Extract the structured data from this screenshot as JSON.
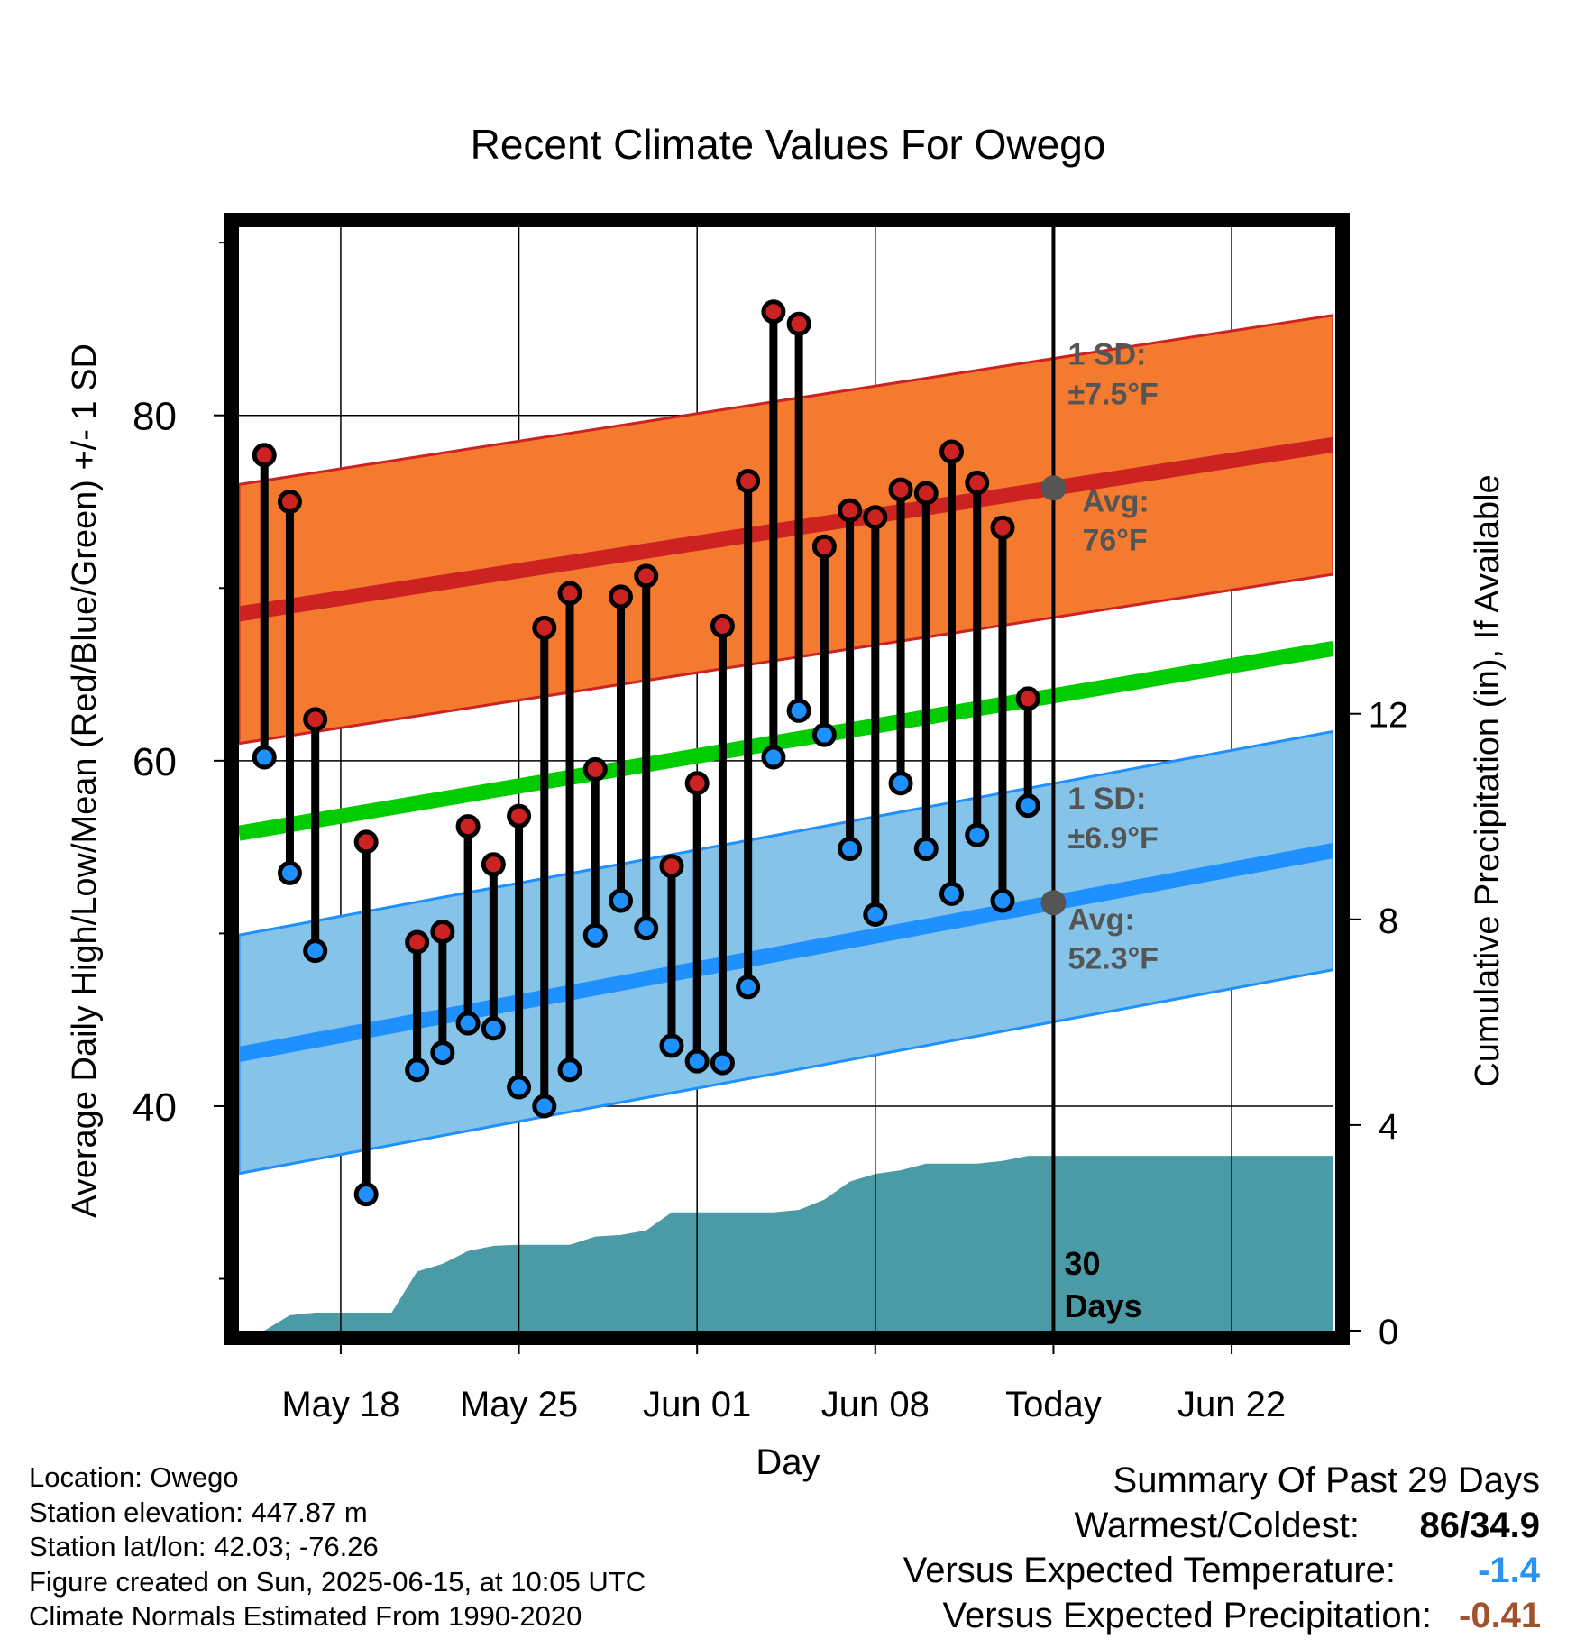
{
  "chart_data": {
    "type": "line",
    "title": "Recent Climate Values For Owego",
    "xlabel": "Day",
    "ylabel": "Average Daily High/Low/Mean (Red/Blue/Green) +/- 1 SD",
    "y2label": "Cumulative Precipitation (in), If Available",
    "xlim": [
      "2025-05-14",
      "2025-06-26"
    ],
    "ylim": [
      27,
      91
    ],
    "y2lim": [
      0,
      21.5
    ],
    "x_ticks": [
      {
        "date": "2025-05-18",
        "label": "May 18"
      },
      {
        "date": "2025-05-25",
        "label": "May 25"
      },
      {
        "date": "2025-06-01",
        "label": "Jun 01"
      },
      {
        "date": "2025-06-08",
        "label": "Jun 08"
      },
      {
        "date": "2025-06-15",
        "label": "Today"
      },
      {
        "date": "2025-06-22",
        "label": "Jun 22"
      }
    ],
    "y_ticks": [
      40,
      60,
      80
    ],
    "y2_ticks": [
      0,
      4,
      8,
      12
    ],
    "grid": true,
    "today": "2025-06-15",
    "today_label": "30\nDays",
    "dates": [
      "2025-05-15",
      "2025-05-16",
      "2025-05-17",
      "2025-05-18",
      "2025-05-19",
      "2025-05-20",
      "2025-05-21",
      "2025-05-22",
      "2025-05-23",
      "2025-05-24",
      "2025-05-25",
      "2025-05-26",
      "2025-05-27",
      "2025-05-28",
      "2025-05-29",
      "2025-05-30",
      "2025-05-31",
      "2025-06-01",
      "2025-06-02",
      "2025-06-03",
      "2025-06-04",
      "2025-06-05",
      "2025-06-06",
      "2025-06-07",
      "2025-06-08",
      "2025-06-09",
      "2025-06-10",
      "2025-06-11",
      "2025-06-12",
      "2025-06-13",
      "2025-06-14"
    ],
    "series": [
      {
        "name": "High",
        "color": "#cc2222",
        "values": [
          77.7,
          75.0,
          62.4,
          null,
          55.3,
          null,
          49.5,
          50.1,
          56.2,
          54.0,
          56.8,
          67.7,
          69.7,
          59.5,
          69.5,
          70.7,
          53.9,
          58.7,
          67.8,
          76.2,
          86.0,
          85.3,
          72.4,
          74.5,
          74.1,
          75.7,
          75.5,
          77.9,
          76.1,
          73.5,
          63.6
        ]
      },
      {
        "name": "Low",
        "color": "#1e90ff",
        "values": [
          60.2,
          53.5,
          49.0,
          null,
          34.9,
          null,
          42.1,
          43.1,
          44.8,
          44.5,
          41.1,
          40.0,
          42.1,
          49.9,
          51.9,
          50.3,
          43.5,
          42.6,
          42.5,
          46.9,
          60.2,
          62.9,
          61.5,
          54.9,
          51.1,
          58.7,
          54.9,
          52.3,
          55.7,
          51.9,
          57.4
        ]
      }
    ],
    "normal_high": {
      "start": 68.5,
      "end": 78.3,
      "sd": 7.5,
      "avg_today": 76,
      "color": "#cc2222",
      "band_color": "#f47a30"
    },
    "normal_low": {
      "start": 43.0,
      "end": 54.8,
      "sd": 6.9,
      "avg_today": 52.3,
      "color": "#1e90ff",
      "band_color": "#85c3e8"
    },
    "normal_mean": {
      "start": 55.8,
      "end": 66.5,
      "color": "#00cc00"
    },
    "precip_color": "#4a9ba5",
    "precip_cumulative": [
      {
        "date": "2025-05-14",
        "value": 0.0
      },
      {
        "date": "2025-05-15",
        "value": 0.0
      },
      {
        "date": "2025-05-16",
        "value": 0.3
      },
      {
        "date": "2025-05-17",
        "value": 0.35
      },
      {
        "date": "2025-05-18",
        "value": 0.35
      },
      {
        "date": "2025-05-19",
        "value": 0.35
      },
      {
        "date": "2025-05-20",
        "value": 0.35
      },
      {
        "date": "2025-05-21",
        "value": 1.15
      },
      {
        "date": "2025-05-22",
        "value": 1.3
      },
      {
        "date": "2025-05-23",
        "value": 1.55
      },
      {
        "date": "2025-05-24",
        "value": 1.65
      },
      {
        "date": "2025-05-25",
        "value": 1.67
      },
      {
        "date": "2025-05-26",
        "value": 1.67
      },
      {
        "date": "2025-05-27",
        "value": 1.67
      },
      {
        "date": "2025-05-28",
        "value": 1.83
      },
      {
        "date": "2025-05-29",
        "value": 1.86
      },
      {
        "date": "2025-05-30",
        "value": 1.95
      },
      {
        "date": "2025-05-31",
        "value": 2.3
      },
      {
        "date": "2025-06-01",
        "value": 2.3
      },
      {
        "date": "2025-06-02",
        "value": 2.3
      },
      {
        "date": "2025-06-03",
        "value": 2.3
      },
      {
        "date": "2025-06-04",
        "value": 2.3
      },
      {
        "date": "2025-06-05",
        "value": 2.35
      },
      {
        "date": "2025-06-06",
        "value": 2.55
      },
      {
        "date": "2025-06-07",
        "value": 2.9
      },
      {
        "date": "2025-06-08",
        "value": 3.05
      },
      {
        "date": "2025-06-09",
        "value": 3.12
      },
      {
        "date": "2025-06-10",
        "value": 3.25
      },
      {
        "date": "2025-06-11",
        "value": 3.25
      },
      {
        "date": "2025-06-12",
        "value": 3.25
      },
      {
        "date": "2025-06-13",
        "value": 3.3
      },
      {
        "date": "2025-06-14",
        "value": 3.4
      },
      {
        "date": "2025-06-26",
        "value": 3.4
      }
    ],
    "annotations": {
      "high_sd_label": "1 SD:",
      "high_sd_value": "±7.5°F",
      "high_avg_label": "Avg:",
      "high_avg_value": "76°F",
      "low_sd_label": "1 SD:",
      "low_sd_value": "±6.9°F",
      "low_avg_label": "Avg:",
      "low_avg_value": "52.3°F"
    }
  },
  "info": {
    "location": "Location: Owego",
    "elevation": "Station elevation: 447.87 m",
    "latlon": "Station lat/lon: 42.03; -76.26",
    "created": "Figure created on Sun, 2025-06-15, at 10:05 UTC",
    "normals": "Climate Normals Estimated From 1990-2020"
  },
  "summary": {
    "title": "Summary Of Past 29 Days",
    "warm_cold_label": "Warmest/Coldest:",
    "warmest": "86",
    "sep": "/",
    "coldest": "34.9",
    "temp_label": "Versus Expected Temperature:",
    "temp_value": "-1.4",
    "temp_color": "#2a93f0",
    "precip_label": "Versus Expected Precipitation:",
    "precip_value": "-0.41",
    "precip_color": "#a0522d"
  }
}
